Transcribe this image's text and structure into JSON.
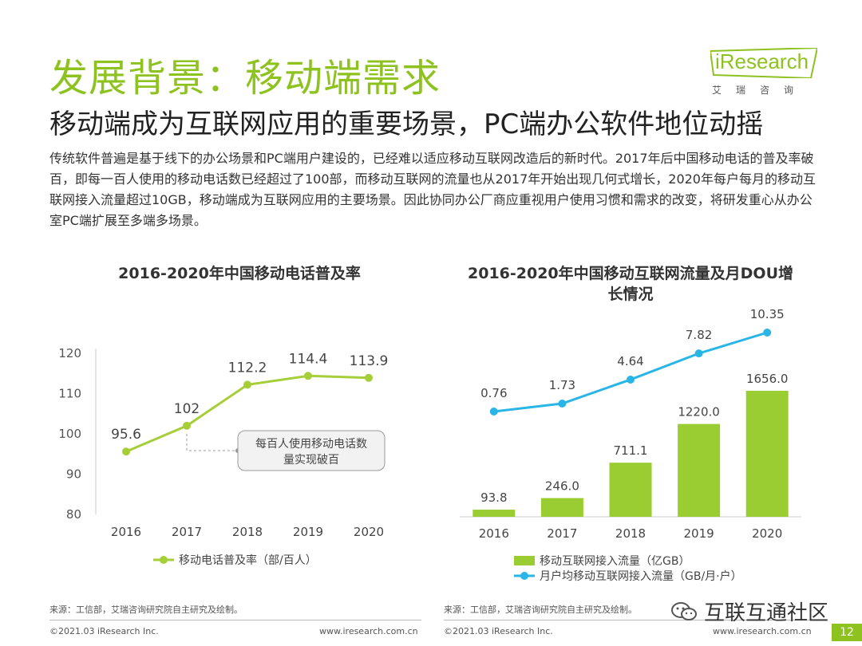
{
  "header": {
    "title": "发展背景：移动端需求",
    "subtitle": "移动端成为互联网应用的重要场景，PC端办公软件地位动摇",
    "logo_main": "iResearch",
    "logo_sub": "艾瑞咨询"
  },
  "body_text": "传统软件普遍是基于线下的办公场景和PC端用户建设的，已经难以适应移动互联网改造后的新时代。2017年后中国移动电话的普及率破百，即每一百人使用的移动电话数已经超过了100部，而移动互联网的流量也从2017年开始出现几何式增长，2020年每户每月的移动互联网接入流量超过10GB，移动端成为互联网应用的主要场景。因此协同办公厂商应重视用户使用习惯和需求的改变，将研发重心从办公室PC端扩展至多端多场景。",
  "chart_data": [
    {
      "type": "line",
      "title": "2016-2020年中国移动电话普及率",
      "categories": [
        "2016",
        "2017",
        "2018",
        "2019",
        "2020"
      ],
      "series": [
        {
          "name": "移动电话普及率（部/百人）",
          "values": [
            95.6,
            102,
            112.2,
            114.4,
            113.9
          ],
          "labels": [
            "95.6",
            "102",
            "112.2",
            "114.4",
            "113.9"
          ]
        }
      ],
      "ylim": [
        80,
        120
      ],
      "yticks": [
        "80",
        "90",
        "100",
        "110",
        "120"
      ],
      "annotation": "每百人使用移动电话数量实现破百",
      "color": "#a6ce39"
    },
    {
      "type": "bar+line",
      "title": "2016-2020年中国移动互联网流量及月DOU增长情况",
      "categories": [
        "2016",
        "2017",
        "2018",
        "2019",
        "2020"
      ],
      "series": [
        {
          "name": "移动互联网接入流量（亿GB）",
          "type": "bar",
          "values": [
            93.8,
            246.0,
            711.1,
            1220.0,
            1656.0
          ],
          "labels": [
            "93.8",
            "246.0",
            "711.1",
            "1220.0",
            "1656.0"
          ],
          "color": "#9acd32"
        },
        {
          "name": "月户均移动互联网接入流量（GB/月·户）",
          "type": "line",
          "values": [
            0.76,
            1.73,
            4.64,
            7.82,
            10.35
          ],
          "labels": [
            "0.76",
            "1.73",
            "4.64",
            "7.82",
            "10.35"
          ],
          "color": "#29b6e6"
        }
      ]
    }
  ],
  "footer": {
    "source1": "来源：工信部，艾瑞咨询研究院自主研究及绘制。",
    "source2": "来源：工信部，艾瑞咨询研究院自主研究及绘制。",
    "copyright1": "©2021.03 iResearch Inc.",
    "url1": "www.iresearch.com.cn",
    "copyright2": "©2021.03 iResearch Inc.",
    "url2": "www.iresearch.com.cn",
    "wechat_name": "互联互通社区",
    "page_number": "12"
  }
}
